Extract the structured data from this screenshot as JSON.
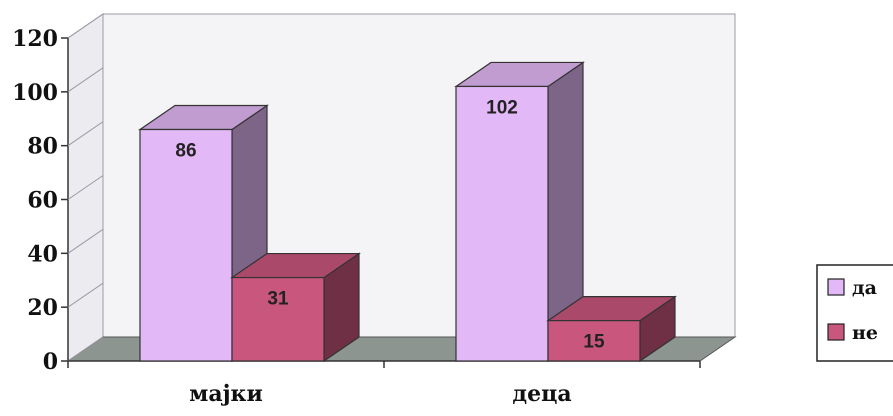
{
  "chart_data": {
    "type": "bar",
    "categories": [
      "мајки",
      "деца"
    ],
    "series": [
      {
        "name": "да",
        "values": [
          86,
          102
        ],
        "color": "#e3b8f6"
      },
      {
        "name": "не",
        "values": [
          31,
          15
        ],
        "color": "#c9567d"
      }
    ],
    "title": "",
    "xlabel": "",
    "ylabel": "",
    "ylim": [
      0,
      120
    ],
    "yticks": [
      0,
      20,
      40,
      60,
      80,
      100,
      120
    ],
    "grid": false,
    "legend_position": "right",
    "style": "3d"
  }
}
